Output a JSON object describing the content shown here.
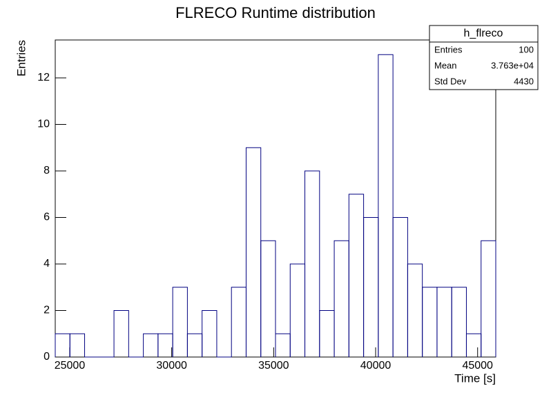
{
  "chart_data": {
    "type": "histogram",
    "title": "FLRECO Runtime distribution",
    "x_label": "Time [s]",
    "y_label": "Entries",
    "color": "#000080",
    "bins": [
      24290,
      25010,
      25730,
      26450,
      27170,
      27890,
      28610,
      29330,
      30050,
      30770,
      31490,
      32210,
      32930,
      33650,
      34370,
      35090,
      35810,
      36530,
      37250,
      37970,
      38690,
      39410,
      40130,
      40850,
      41570,
      42290,
      43010,
      43730,
      44450,
      45170,
      45890
    ],
    "values": [
      1,
      1,
      0,
      0,
      2,
      0,
      1,
      1,
      3,
      1,
      2,
      0,
      3,
      9,
      5,
      1,
      4,
      8,
      2,
      5,
      7,
      6,
      13,
      6,
      4,
      3,
      3,
      3,
      1,
      5
    ],
    "xlim": [
      24290,
      45890
    ],
    "xticks": [
      25000,
      30000,
      35000,
      40000,
      45000
    ],
    "ylim": [
      0,
      13.63
    ],
    "yticks": [
      0,
      2,
      4,
      6,
      8,
      10,
      12
    ],
    "stats": {
      "title": "h_flreco",
      "rows": [
        [
          "Entries",
          "100"
        ],
        [
          "Mean",
          "3.763e+04"
        ],
        [
          "Std Dev",
          "4430"
        ]
      ]
    }
  }
}
